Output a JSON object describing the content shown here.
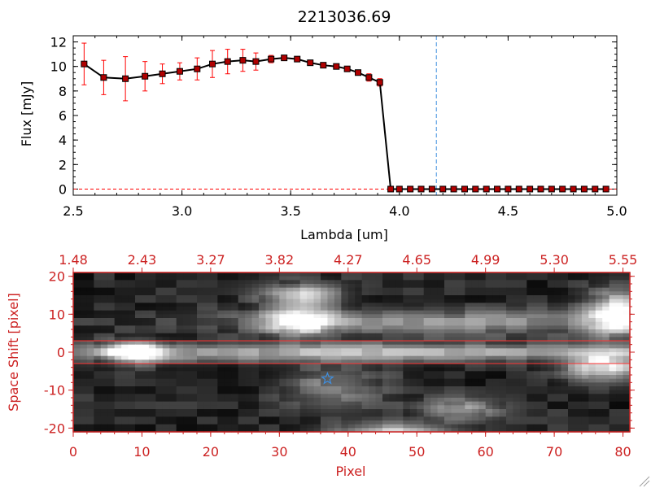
{
  "chart_data": [
    {
      "type": "line",
      "title": "2213036.69",
      "xlabel": "Lambda [um]",
      "ylabel": "Flux [mJy]",
      "xlim": [
        2.5,
        5.0
      ],
      "ylim": [
        -0.5,
        12.5
      ],
      "x_ticks": [
        "2.5",
        "3.0",
        "3.5",
        "4.0",
        "4.5",
        "5.0"
      ],
      "y_ticks": [
        "0",
        "2",
        "4",
        "6",
        "8",
        "10",
        "12"
      ],
      "series": [
        {
          "color": "#000000",
          "marker_color": "#b00000",
          "error_color": "#ff0000",
          "x": [
            2.55,
            2.64,
            2.74,
            2.83,
            2.91,
            2.99,
            3.07,
            3.14,
            3.21,
            3.28,
            3.34,
            3.41,
            3.47,
            3.53,
            3.59,
            3.65,
            3.71,
            3.76,
            3.81,
            3.86,
            3.91,
            3.96,
            4.0,
            4.05,
            4.1,
            4.15,
            4.2,
            4.25,
            4.3,
            4.35,
            4.4,
            4.45,
            4.5,
            4.55,
            4.6,
            4.65,
            4.7,
            4.75,
            4.8,
            4.85,
            4.9,
            4.95
          ],
          "y": [
            10.2,
            9.1,
            9.0,
            9.2,
            9.4,
            9.6,
            9.8,
            10.2,
            10.4,
            10.5,
            10.4,
            10.6,
            10.7,
            10.6,
            10.3,
            10.1,
            10.0,
            9.8,
            9.5,
            9.1,
            8.7,
            0.0,
            0.0,
            0.0,
            0.0,
            0.0,
            0.0,
            0.0,
            0.0,
            0.0,
            0.0,
            0.0,
            0.0,
            0.0,
            0.0,
            0.0,
            0.0,
            0.0,
            0.0,
            0.0,
            0.0,
            0.0
          ],
          "yerr": [
            1.7,
            1.4,
            1.8,
            1.2,
            0.8,
            0.7,
            0.9,
            1.1,
            1.0,
            0.9,
            0.7,
            0.3,
            0.2,
            0.2,
            0.2,
            0.2,
            0.2,
            0.2,
            0.2,
            0.3,
            0.3,
            0,
            0,
            0,
            0,
            0,
            0,
            0,
            0,
            0,
            0,
            0,
            0,
            0,
            0,
            0,
            0,
            0,
            0,
            0,
            0,
            0
          ]
        }
      ],
      "vline": {
        "x": 4.17,
        "color": "#3f8fe0",
        "style": "dashed"
      },
      "hline": {
        "y": 0,
        "color": "#ff0000",
        "style": "dashed"
      }
    },
    {
      "type": "heatmap",
      "xlabel": "Pixel",
      "ylabel": "Space Shift [pixel]",
      "xlim": [
        0,
        81
      ],
      "ylim": [
        -21,
        21
      ],
      "x_ticks": [
        "0",
        "10",
        "20",
        "30",
        "40",
        "50",
        "60",
        "70",
        "80"
      ],
      "y_ticks": [
        "-20",
        "-10",
        "0",
        "10",
        "20"
      ],
      "top_axis_ticks": [
        "1.48",
        "2.43",
        "3.27",
        "3.82",
        "4.27",
        "4.65",
        "4.99",
        "5.30",
        "5.55"
      ],
      "grid_size": {
        "cols": 81,
        "rows": 42
      },
      "extraction_lines": [
        3,
        -3
      ],
      "line_color": "#ff3333",
      "marker": {
        "symbol": "star",
        "x": 37,
        "y": -7,
        "color": "#3f8fe0"
      },
      "colormap": "grayscale",
      "axis_color": "#cc2222",
      "sources": [
        {
          "x": 9,
          "y": 0,
          "intensity": 255,
          "sx": 3.0,
          "sy": 1.8
        },
        {
          "x": 45,
          "y": 0,
          "intensity": 150,
          "sx": 36,
          "sy": 1.6
        },
        {
          "x": 33,
          "y": 8,
          "intensity": 210,
          "sx": 3.5,
          "sy": 2.5
        },
        {
          "x": 55,
          "y": 8,
          "intensity": 110,
          "sx": 24,
          "sy": 2.2
        },
        {
          "x": 33,
          "y": 15,
          "intensity": 170,
          "sx": 4,
          "sy": 2.2
        },
        {
          "x": 79,
          "y": 10,
          "intensity": 220,
          "sx": 3,
          "sy": 4
        },
        {
          "x": 77,
          "y": -4,
          "intensity": 200,
          "sx": 4,
          "sy": 2.5
        },
        {
          "x": 56,
          "y": -15,
          "intensity": 130,
          "sx": 4,
          "sy": 2
        },
        {
          "x": 47,
          "y": -21,
          "intensity": 180,
          "sx": 6,
          "sy": 1.5
        },
        {
          "x": 38,
          "y": -9,
          "intensity": 90,
          "sx": 5,
          "sy": 4
        }
      ]
    }
  ]
}
